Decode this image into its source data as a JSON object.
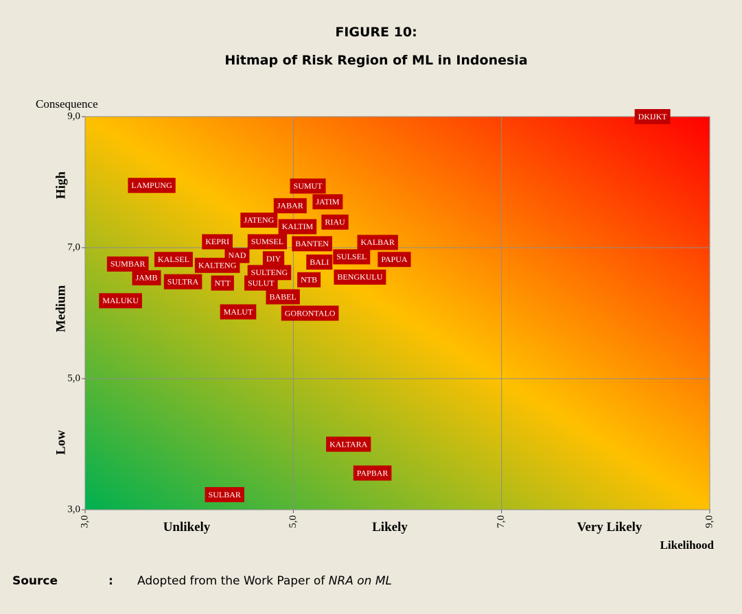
{
  "chart_data": {
    "type": "scatter",
    "title": "FIGURE 10:",
    "subtitle": "Hitmap of Risk Region of ML in Indonesia",
    "x_label": "Likelihood",
    "y_label": "Consequence",
    "xlim": [
      3,
      9
    ],
    "ylim": [
      3,
      9
    ],
    "xticks": [
      {
        "value": 3,
        "label": "3,0"
      },
      {
        "value": 5,
        "label": "5,0"
      },
      {
        "value": 7,
        "label": "7,0"
      },
      {
        "value": 9,
        "label": "9,0"
      }
    ],
    "yticks": [
      {
        "value": 3,
        "label": "3,0"
      },
      {
        "value": 5,
        "label": "5,0"
      },
      {
        "value": 7,
        "label": "7,0"
      },
      {
        "value": 9,
        "label": "9,0"
      }
    ],
    "x_regions": [
      "Unlikely",
      "Likely",
      "Very Likely"
    ],
    "y_regions": [
      "Low",
      "Medium",
      "High"
    ],
    "grid": true,
    "color": "#c00000",
    "points": [
      {
        "label": "DKIJKT",
        "x": 8.45,
        "y": 9.0
      },
      {
        "label": "LAMPUNG",
        "x": 3.64,
        "y": 7.95
      },
      {
        "label": "SUMUT",
        "x": 5.14,
        "y": 7.94
      },
      {
        "label": "JABAR",
        "x": 4.97,
        "y": 7.64
      },
      {
        "label": "JATIM",
        "x": 5.33,
        "y": 7.7
      },
      {
        "label": "JATENG",
        "x": 4.67,
        "y": 7.42
      },
      {
        "label": "KALTIM",
        "x": 5.04,
        "y": 7.32
      },
      {
        "label": "RIAU",
        "x": 5.4,
        "y": 7.39
      },
      {
        "label": "KEPRI",
        "x": 4.27,
        "y": 7.09
      },
      {
        "label": "SUMSEL",
        "x": 4.75,
        "y": 7.09
      },
      {
        "label": "BANTEN",
        "x": 5.18,
        "y": 7.06
      },
      {
        "label": "KALBAR",
        "x": 5.81,
        "y": 7.08
      },
      {
        "label": "NAD",
        "x": 4.46,
        "y": 6.88
      },
      {
        "label": "DIY",
        "x": 4.81,
        "y": 6.83
      },
      {
        "label": "SULSEL",
        "x": 5.56,
        "y": 6.86
      },
      {
        "label": "PAPUA",
        "x": 5.97,
        "y": 6.82
      },
      {
        "label": "SUMBAR",
        "x": 3.41,
        "y": 6.75
      },
      {
        "label": "KALSEL",
        "x": 3.85,
        "y": 6.82
      },
      {
        "label": "KALTENG",
        "x": 4.27,
        "y": 6.73
      },
      {
        "label": "BALI",
        "x": 5.25,
        "y": 6.78
      },
      {
        "label": "SULTENG",
        "x": 4.77,
        "y": 6.62
      },
      {
        "label": "JAMB",
        "x": 3.59,
        "y": 6.54
      },
      {
        "label": "SULTRA",
        "x": 3.94,
        "y": 6.48
      },
      {
        "label": "NTT",
        "x": 4.32,
        "y": 6.46
      },
      {
        "label": "SULUT",
        "x": 4.69,
        "y": 6.46
      },
      {
        "label": "NTB",
        "x": 5.15,
        "y": 6.51
      },
      {
        "label": "BENGKULU",
        "x": 5.64,
        "y": 6.55
      },
      {
        "label": "MALUKU",
        "x": 3.34,
        "y": 6.19
      },
      {
        "label": "BABEL",
        "x": 4.9,
        "y": 6.25
      },
      {
        "label": "MALUT",
        "x": 4.47,
        "y": 6.02
      },
      {
        "label": "GORONTALO",
        "x": 5.16,
        "y": 6.0
      },
      {
        "label": "KALTARA",
        "x": 5.53,
        "y": 4.0
      },
      {
        "label": "PAPBAR",
        "x": 5.76,
        "y": 3.56
      },
      {
        "label": "SULBAR",
        "x": 4.34,
        "y": 3.23
      }
    ]
  },
  "source": {
    "label": "Source",
    "separator": ":",
    "text": "Adopted from the Work Paper of ",
    "emphasis": "NRA on ML"
  }
}
